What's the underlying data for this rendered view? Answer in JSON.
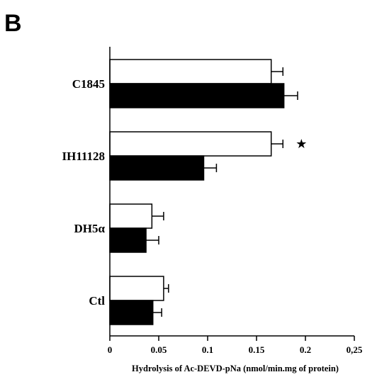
{
  "panel_label": "B",
  "chart_data": {
    "type": "bar",
    "orientation": "horizontal",
    "categories": [
      "C1845",
      "IH11128",
      "DH5α",
      "Ctl"
    ],
    "series": [
      {
        "color": "#ffffff",
        "values": [
          0.165,
          0.165,
          0.043,
          0.055
        ],
        "errors": [
          0.012,
          0.012,
          0.012,
          0.005
        ]
      },
      {
        "color": "#000000",
        "values": [
          0.178,
          0.096,
          0.037,
          0.044
        ],
        "errors": [
          0.014,
          0.013,
          0.013,
          0.009
        ]
      }
    ],
    "significance": [
      {
        "category": "IH11128",
        "series_index": 0,
        "symbol": "★"
      }
    ],
    "xlabel": "Hydrolysis of Ac-DEVD-pNa (nmol/min.mg of protein)",
    "ylabel": "",
    "xlim": [
      0,
      0.25
    ],
    "xticks": [
      0,
      0.05,
      0.1,
      0.15,
      0.2,
      0.25
    ],
    "xtick_labels": [
      "0",
      "0.05",
      "0.1",
      "0.15",
      "0.2",
      "0,25"
    ],
    "grid": false,
    "legend": "none"
  }
}
